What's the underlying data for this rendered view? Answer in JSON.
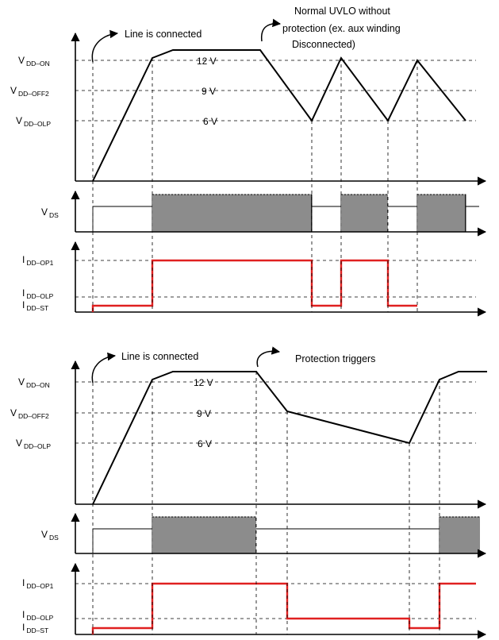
{
  "figure": {
    "sub_on": "DD–ON",
    "sub_off2": "DD–OFF2",
    "sub_olp": "DD–OLP",
    "sub_ds": "DS",
    "sub_op1": "DD–OP1",
    "sub_st": "DD–ST",
    "v_letter": "V",
    "i_letter": "I",
    "val_12": "12 V",
    "val_9": "9 V",
    "val_6": "6 V"
  },
  "top": {
    "line_connected": "Line is connected",
    "normal_uvlo_1": "Normal UVLO without",
    "normal_uvlo_2": "protection (ex. aux winding",
    "normal_uvlo_3": "Disconnected)"
  },
  "bottom": {
    "line_connected": "Line is connected",
    "protection": "Protection triggers"
  },
  "colors": {
    "idd_trace": "#e02020",
    "ink": "#000000"
  }
}
